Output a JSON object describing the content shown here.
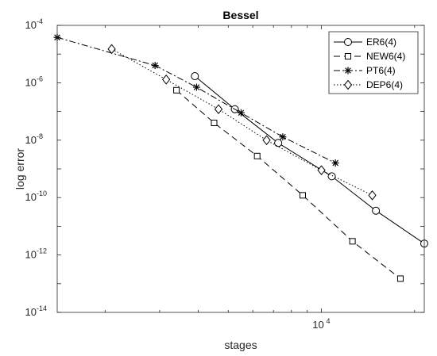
{
  "chart_data": {
    "type": "line",
    "title": "Bessel",
    "xlabel": "stages",
    "ylabel": "log error",
    "xscale": "log",
    "yscale": "log",
    "xlim": [
      1400,
      21500
    ],
    "ylim": [
      1e-14,
      0.0001
    ],
    "x_ticks": [
      {
        "value": 10000,
        "base": "10",
        "exp": "4"
      }
    ],
    "y_ticks": [
      {
        "value": 0.0001,
        "base": "10",
        "exp": "-4"
      },
      {
        "value": 1e-06,
        "base": "10",
        "exp": "-6"
      },
      {
        "value": 1e-08,
        "base": "10",
        "exp": "-8"
      },
      {
        "value": 1e-10,
        "base": "10",
        "exp": "-10"
      },
      {
        "value": 1e-12,
        "base": "10",
        "exp": "-12"
      },
      {
        "value": 1e-14,
        "base": "10",
        "exp": "-14"
      }
    ],
    "legend_position": "top-right",
    "series": [
      {
        "name": "ER6(4)",
        "marker": "circle",
        "dash": "solid",
        "x": [
          3900,
          5250,
          7250,
          10800,
          15000,
          21500
        ],
        "y": [
          1.7e-06,
          1.2e-07,
          8e-09,
          5.5e-10,
          3.5e-11,
          2.5e-12
        ]
      },
      {
        "name": "NEW6(4)",
        "marker": "square",
        "dash": "dashed",
        "x": [
          3400,
          4500,
          6200,
          8700,
          12600,
          18000
        ],
        "y": [
          5.5e-07,
          4e-08,
          2.8e-09,
          1.2e-10,
          3e-12,
          1.5e-13
        ]
      },
      {
        "name": "PT6(4)",
        "marker": "star",
        "dash": "dashdot",
        "x": [
          1400,
          2900,
          3950,
          5500,
          7500,
          11100
        ],
        "y": [
          3.8e-05,
          4e-06,
          7e-07,
          9e-08,
          1.3e-08,
          1.6e-09
        ]
      },
      {
        "name": "DEP6(4)",
        "marker": "diamond",
        "dash": "dotted",
        "x": [
          2100,
          3150,
          4650,
          6650,
          10000,
          14600
        ],
        "y": [
          1.5e-05,
          1.3e-06,
          1.2e-07,
          1e-08,
          9e-10,
          1.2e-10
        ]
      }
    ]
  }
}
